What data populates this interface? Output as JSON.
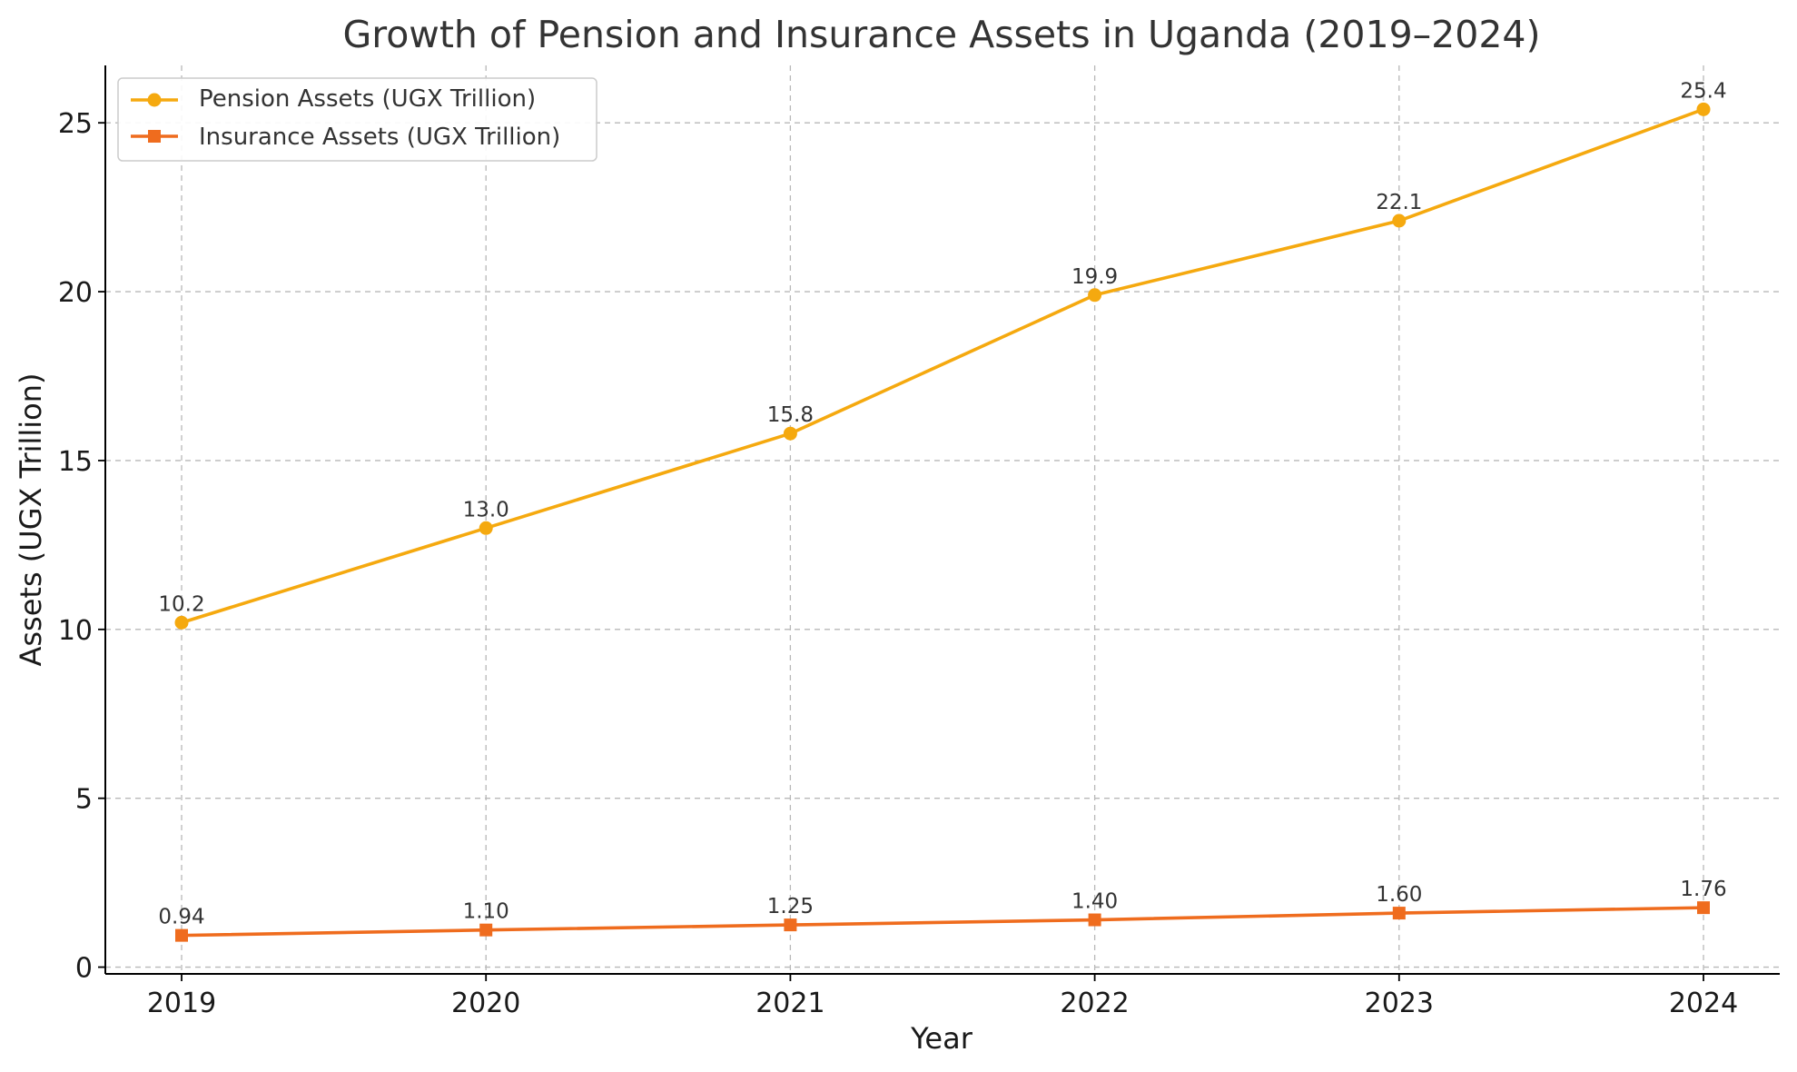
{
  "chart_data": {
    "type": "line",
    "title": "Growth of Pension and Insurance Assets in Uganda (2019–2024)",
    "xlabel": "Year",
    "ylabel": "Assets (UGX Trillion)",
    "x": [
      2019,
      2020,
      2021,
      2022,
      2023,
      2024
    ],
    "x_tick_labels": [
      "2019",
      "2020",
      "2021",
      "2022",
      "2023",
      "2024"
    ],
    "ylim": [
      -0.2,
      26.7
    ],
    "y_ticks": [
      0,
      5,
      10,
      15,
      20,
      25
    ],
    "y_tick_labels": [
      "0",
      "5",
      "10",
      "15",
      "20",
      "25"
    ],
    "grid": true,
    "legend_position": "top-left",
    "series": [
      {
        "name": "Pension Assets (UGX Trillion)",
        "color": "#f5a90f",
        "marker": "circle",
        "values": [
          10.2,
          13.0,
          15.8,
          19.9,
          22.1,
          25.4
        ],
        "labels": [
          "10.2",
          "13.0",
          "15.8",
          "19.9",
          "22.1",
          "25.4"
        ]
      },
      {
        "name": "Insurance Assets (UGX Trillion)",
        "color": "#ef6c1e",
        "marker": "square",
        "values": [
          0.94,
          1.1,
          1.25,
          1.4,
          1.6,
          1.76
        ],
        "labels": [
          "0.94",
          "1.10",
          "1.25",
          "1.40",
          "1.60",
          "1.76"
        ]
      }
    ]
  }
}
